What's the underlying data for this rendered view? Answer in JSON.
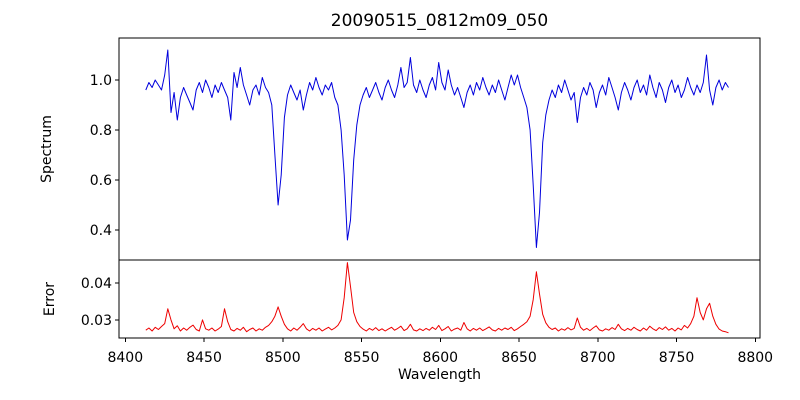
{
  "figure": {
    "title": "20090515_0812m09_050"
  },
  "axes": {
    "xlabel": "Wavelength",
    "xlim": [
      8396,
      8803
    ],
    "xticks": [
      8400,
      8450,
      8500,
      8550,
      8600,
      8650,
      8700,
      8750,
      8800
    ],
    "xtick_labels": [
      "8400",
      "8450",
      "8500",
      "8550",
      "8600",
      "8650",
      "8700",
      "8750",
      "8800"
    ],
    "frame_color": "#000000",
    "background": "#ffffff"
  },
  "chart_data": [
    {
      "type": "line",
      "name": "spectrum",
      "ylabel": "Spectrum",
      "color": "#0000dd",
      "ylim": [
        0.28,
        1.168
      ],
      "yticks": [
        0.4,
        0.6,
        0.8,
        1.0
      ],
      "ytick_labels": [
        "0.4",
        "0.6",
        "0.8",
        "1.0"
      ],
      "x_start": 8413,
      "x_step": 2,
      "values": [
        0.96,
        0.99,
        0.97,
        1.0,
        0.98,
        0.96,
        1.02,
        1.12,
        0.87,
        0.95,
        0.84,
        0.93,
        0.97,
        0.94,
        0.91,
        0.88,
        0.96,
        0.99,
        0.95,
        1.0,
        0.97,
        0.93,
        0.98,
        0.95,
        0.99,
        0.96,
        0.93,
        0.84,
        1.03,
        0.97,
        1.05,
        0.98,
        0.94,
        0.9,
        0.96,
        0.98,
        0.94,
        1.01,
        0.97,
        0.95,
        0.9,
        0.7,
        0.5,
        0.62,
        0.85,
        0.94,
        0.98,
        0.95,
        0.92,
        0.96,
        0.88,
        0.94,
        0.99,
        0.96,
        1.01,
        0.97,
        0.94,
        0.98,
        0.96,
        0.99,
        0.93,
        0.9,
        0.8,
        0.62,
        0.36,
        0.44,
        0.68,
        0.82,
        0.9,
        0.94,
        0.97,
        0.93,
        0.96,
        0.99,
        0.95,
        0.92,
        0.97,
        1.0,
        0.96,
        0.93,
        0.98,
        1.05,
        0.97,
        0.99,
        1.09,
        0.98,
        0.95,
        1.0,
        0.96,
        0.93,
        0.98,
        1.01,
        0.96,
        1.07,
        0.99,
        0.96,
        1.04,
        0.98,
        0.94,
        0.97,
        0.93,
        0.89,
        0.95,
        0.98,
        0.94,
        0.99,
        0.96,
        1.01,
        0.97,
        0.94,
        0.98,
        0.95,
        1.0,
        0.96,
        0.92,
        0.97,
        1.02,
        0.98,
        1.02,
        0.97,
        0.93,
        0.89,
        0.8,
        0.58,
        0.33,
        0.47,
        0.75,
        0.86,
        0.92,
        0.96,
        0.93,
        0.98,
        0.95,
        1.0,
        0.96,
        0.92,
        0.95,
        0.83,
        0.93,
        0.97,
        0.94,
        0.99,
        0.96,
        0.89,
        0.95,
        0.98,
        0.94,
        1.01,
        0.97,
        0.93,
        0.88,
        0.95,
        0.99,
        0.96,
        0.92,
        0.97,
        1.0,
        0.95,
        0.98,
        0.94,
        1.02,
        0.97,
        0.93,
        0.99,
        0.96,
        0.91,
        0.97,
        1.0,
        0.95,
        0.98,
        0.93,
        0.96,
        1.01,
        0.97,
        0.94,
        0.98,
        0.95,
        0.99,
        1.1,
        0.96,
        0.9,
        0.97,
        1.0,
        0.96,
        0.99,
        0.97
      ]
    },
    {
      "type": "line",
      "name": "error",
      "ylabel": "Error",
      "color": "#ee0000",
      "ylim": [
        0.0251,
        0.0462
      ],
      "yticks": [
        0.03,
        0.04
      ],
      "ytick_labels": [
        "0.03",
        "0.04"
      ],
      "x_start": 8413,
      "x_step": 2,
      "values": [
        0.0272,
        0.0278,
        0.027,
        0.028,
        0.0274,
        0.0282,
        0.029,
        0.033,
        0.03,
        0.0276,
        0.0284,
        0.027,
        0.0278,
        0.0272,
        0.028,
        0.0286,
        0.0274,
        0.027,
        0.03,
        0.0276,
        0.0272,
        0.0278,
        0.027,
        0.0275,
        0.0282,
        0.033,
        0.0295,
        0.0274,
        0.027,
        0.0277,
        0.0272,
        0.028,
        0.0268,
        0.0274,
        0.0278,
        0.027,
        0.0276,
        0.0272,
        0.028,
        0.0285,
        0.0295,
        0.031,
        0.0335,
        0.031,
        0.0288,
        0.0276,
        0.027,
        0.0278,
        0.0272,
        0.028,
        0.029,
        0.0276,
        0.027,
        0.0277,
        0.0272,
        0.0278,
        0.027,
        0.0275,
        0.028,
        0.0273,
        0.0278,
        0.0285,
        0.03,
        0.036,
        0.0455,
        0.039,
        0.032,
        0.0295,
        0.0282,
        0.0275,
        0.027,
        0.0277,
        0.0272,
        0.0279,
        0.0271,
        0.0276,
        0.027,
        0.0275,
        0.028,
        0.0272,
        0.0277,
        0.0283,
        0.0271,
        0.0276,
        0.0288,
        0.0273,
        0.027,
        0.0276,
        0.0271,
        0.0277,
        0.0272,
        0.028,
        0.0274,
        0.0285,
        0.0271,
        0.0276,
        0.0282,
        0.027,
        0.0275,
        0.0278,
        0.0272,
        0.0293,
        0.0276,
        0.027,
        0.0277,
        0.0272,
        0.0278,
        0.0271,
        0.0276,
        0.0281,
        0.0273,
        0.027,
        0.0277,
        0.0272,
        0.0278,
        0.0274,
        0.028,
        0.0271,
        0.0276,
        0.0282,
        0.0288,
        0.0295,
        0.031,
        0.0355,
        0.043,
        0.037,
        0.0315,
        0.0292,
        0.028,
        0.0274,
        0.0278,
        0.027,
        0.0276,
        0.0272,
        0.0279,
        0.0273,
        0.0277,
        0.0305,
        0.028,
        0.0272,
        0.0277,
        0.0271,
        0.0278,
        0.0284,
        0.0273,
        0.027,
        0.0276,
        0.0272,
        0.0279,
        0.0274,
        0.0288,
        0.0276,
        0.0271,
        0.0277,
        0.0272,
        0.028,
        0.0274,
        0.027,
        0.0278,
        0.0272,
        0.0283,
        0.0276,
        0.0271,
        0.0279,
        0.0274,
        0.0281,
        0.0272,
        0.0277,
        0.027,
        0.0278,
        0.0273,
        0.0285,
        0.0278,
        0.029,
        0.031,
        0.036,
        0.032,
        0.03,
        0.033,
        0.0345,
        0.031,
        0.0288,
        0.0275,
        0.027,
        0.0268,
        0.0265
      ]
    }
  ]
}
